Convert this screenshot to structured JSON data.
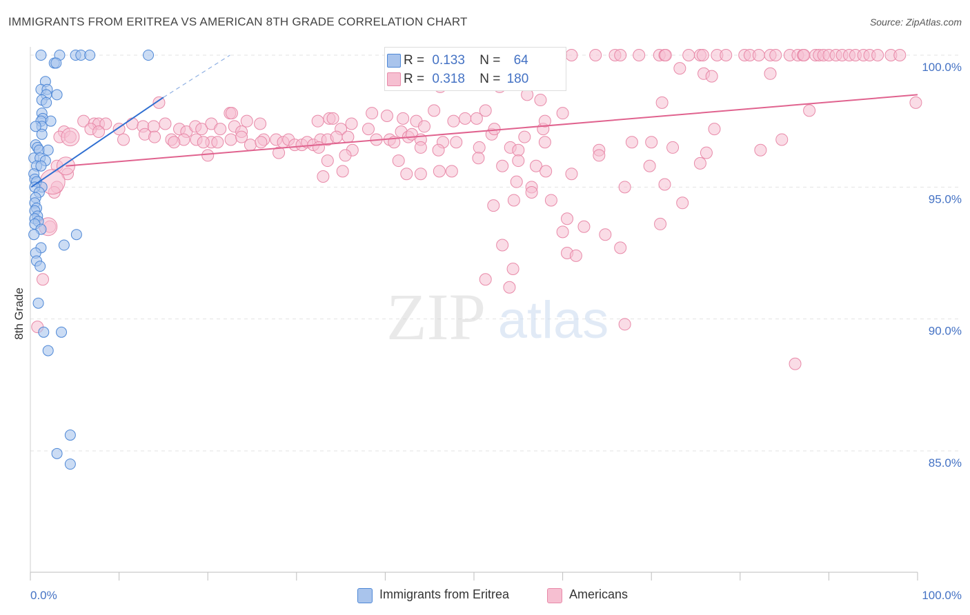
{
  "title": "IMMIGRANTS FROM ERITREA VS AMERICAN 8TH GRADE CORRELATION CHART",
  "source": "Source: ZipAtlas.com",
  "watermark": {
    "zip": "ZIP",
    "atlas": "atlas"
  },
  "legend": {
    "r_label": "R =",
    "n_label": "N =",
    "series": [
      {
        "name": "Immigrants from Eritrea",
        "r": "0.133",
        "n": "64"
      },
      {
        "name": "Americans",
        "r": "0.318",
        "n": "180"
      }
    ]
  },
  "colors": {
    "blue_fill": "#a9c4ec",
    "blue_stroke": "#4d87d6",
    "blue_line": "#2f6fd1",
    "pink_fill": "#f6bfd1",
    "pink_stroke": "#e889a8",
    "pink_line": "#e0628e",
    "tick_text": "#4472c4",
    "grid": "#e3e3e3"
  },
  "chart_data": {
    "type": "scatter",
    "title": "IMMIGRANTS FROM ERITREA VS AMERICAN 8TH GRADE CORRELATION CHART",
    "xlabel": "",
    "ylabel": "8th Grade",
    "xlim": [
      0,
      100
    ],
    "ylim": [
      80.5,
      100.5
    ],
    "x_ticks": [
      "0.0%",
      "100.0%"
    ],
    "y_ticks": [
      {
        "value": 100,
        "label": "100.0%"
      },
      {
        "value": 95,
        "label": "95.0%"
      },
      {
        "value": 90,
        "label": "90.0%"
      },
      {
        "value": 85,
        "label": "85.0%"
      }
    ],
    "grid": "horizontal dashed",
    "legend_position": "top-center",
    "series": [
      {
        "name": "Immigrants from Eritrea",
        "color": "blue",
        "r": 0.133,
        "n": 64,
        "trend": {
          "x0": 0.1,
          "y0": 95.0,
          "x1": 15.0,
          "y1": 98.4,
          "dashed_to_x": 22.5,
          "dashed_to_y": 100.0
        },
        "points": [
          [
            1.2,
            100
          ],
          [
            3.3,
            100
          ],
          [
            5.1,
            100
          ],
          [
            5.7,
            100
          ],
          [
            6.7,
            100
          ],
          [
            13.3,
            100
          ],
          [
            2.7,
            99.7
          ],
          [
            2.9,
            99.7
          ],
          [
            1.7,
            99.0
          ],
          [
            1.2,
            98.7
          ],
          [
            1.9,
            98.7
          ],
          [
            1.8,
            98.5
          ],
          [
            3.0,
            98.5
          ],
          [
            1.3,
            98.3
          ],
          [
            1.8,
            98.2
          ],
          [
            1.3,
            97.8
          ],
          [
            1.4,
            97.6
          ],
          [
            1.2,
            97.5
          ],
          [
            2.3,
            97.5
          ],
          [
            1.3,
            97.3
          ],
          [
            0.6,
            97.3
          ],
          [
            1.3,
            97.0
          ],
          [
            0.6,
            96.6
          ],
          [
            0.8,
            96.5
          ],
          [
            1.0,
            96.4
          ],
          [
            2.0,
            96.4
          ],
          [
            0.4,
            96.1
          ],
          [
            1.1,
            96.1
          ],
          [
            1.7,
            96.0
          ],
          [
            0.7,
            95.8
          ],
          [
            1.2,
            95.8
          ],
          [
            0.4,
            95.5
          ],
          [
            0.5,
            95.3
          ],
          [
            0.7,
            95.2
          ],
          [
            1.3,
            95.0
          ],
          [
            0.5,
            95.0
          ],
          [
            1.0,
            94.8
          ],
          [
            0.6,
            94.6
          ],
          [
            0.5,
            94.4
          ],
          [
            0.7,
            94.2
          ],
          [
            0.5,
            94.1
          ],
          [
            0.8,
            93.9
          ],
          [
            0.5,
            93.8
          ],
          [
            0.9,
            93.7
          ],
          [
            0.5,
            93.6
          ],
          [
            1.2,
            93.4
          ],
          [
            0.4,
            93.2
          ],
          [
            5.2,
            93.2
          ],
          [
            1.2,
            92.7
          ],
          [
            3.8,
            92.8
          ],
          [
            0.6,
            92.5
          ],
          [
            0.7,
            92.2
          ],
          [
            1.1,
            92.0
          ],
          [
            0.9,
            90.6
          ],
          [
            1.5,
            89.5
          ],
          [
            3.5,
            89.5
          ],
          [
            2.0,
            88.8
          ],
          [
            4.5,
            85.6
          ],
          [
            3.0,
            84.9
          ],
          [
            4.5,
            84.5
          ]
        ]
      },
      {
        "name": "Americans",
        "color": "pink",
        "r": 0.318,
        "n": 180,
        "trend": {
          "x0": 4.0,
          "y0": 95.8,
          "x1": 100.0,
          "y1": 98.5
        },
        "points": [
          [
            59.0,
            100
          ],
          [
            63.7,
            100
          ],
          [
            65.9,
            100
          ],
          [
            66.5,
            100
          ],
          [
            68.6,
            100
          ],
          [
            70.9,
            100
          ],
          [
            71.5,
            100
          ],
          [
            71.6,
            100
          ],
          [
            74.2,
            100
          ],
          [
            75.5,
            100
          ],
          [
            75.8,
            100
          ],
          [
            77.4,
            100
          ],
          [
            78.4,
            100
          ],
          [
            80.5,
            100
          ],
          [
            81.1,
            100
          ],
          [
            82.1,
            100
          ],
          [
            83.4,
            100
          ],
          [
            84.0,
            100
          ],
          [
            85.6,
            100
          ],
          [
            86.5,
            100
          ],
          [
            87.1,
            100
          ],
          [
            87.2,
            100
          ],
          [
            88.5,
            100
          ],
          [
            88.9,
            100
          ],
          [
            89.4,
            100
          ],
          [
            90.0,
            100
          ],
          [
            90.8,
            100
          ],
          [
            91.5,
            100
          ],
          [
            92.3,
            100
          ],
          [
            93.0,
            100
          ],
          [
            93.9,
            100
          ],
          [
            94.6,
            100
          ],
          [
            95.5,
            100
          ],
          [
            97.0,
            100
          ],
          [
            98.0,
            100
          ],
          [
            49.0,
            100
          ],
          [
            51.2,
            99.6
          ],
          [
            59.8,
            100
          ],
          [
            61.0,
            100
          ],
          [
            73.2,
            99.5
          ],
          [
            75.9,
            99.3
          ],
          [
            76.8,
            99.2
          ],
          [
            83.4,
            99.3
          ],
          [
            46.2,
            98.8
          ],
          [
            52.9,
            98.8
          ],
          [
            54.0,
            98.9
          ],
          [
            56.0,
            98.5
          ],
          [
            57.5,
            98.3
          ],
          [
            14.5,
            98.2
          ],
          [
            71.2,
            98.2
          ],
          [
            99.8,
            98.2
          ],
          [
            22.5,
            97.8
          ],
          [
            22.7,
            97.8
          ],
          [
            33.7,
            97.6
          ],
          [
            34.1,
            97.6
          ],
          [
            38.5,
            97.8
          ],
          [
            40.2,
            97.7
          ],
          [
            42.0,
            97.6
          ],
          [
            45.5,
            97.9
          ],
          [
            49.0,
            97.6
          ],
          [
            50.3,
            97.6
          ],
          [
            51.3,
            97.9
          ],
          [
            60.0,
            97.8
          ],
          [
            87.8,
            97.9
          ],
          [
            6.0,
            97.5
          ],
          [
            7.2,
            97.4
          ],
          [
            7.7,
            97.4
          ],
          [
            8.5,
            97.4
          ],
          [
            10.0,
            97.2
          ],
          [
            11.5,
            97.4
          ],
          [
            12.7,
            97.3
          ],
          [
            13.9,
            97.3
          ],
          [
            15.2,
            97.4
          ],
          [
            16.8,
            97.2
          ],
          [
            17.6,
            97.1
          ],
          [
            18.6,
            97.3
          ],
          [
            19.3,
            97.2
          ],
          [
            20.4,
            97.4
          ],
          [
            21.4,
            97.2
          ],
          [
            23.0,
            97.3
          ],
          [
            23.8,
            97.1
          ],
          [
            24.4,
            97.5
          ],
          [
            25.9,
            97.4
          ],
          [
            32.4,
            97.5
          ],
          [
            35.0,
            97.2
          ],
          [
            36.2,
            97.4
          ],
          [
            38.1,
            97.2
          ],
          [
            41.8,
            97.1
          ],
          [
            43.5,
            97.5
          ],
          [
            44.4,
            97.3
          ],
          [
            47.7,
            97.5
          ],
          [
            57.8,
            97.2
          ],
          [
            58.0,
            97.5
          ],
          [
            77.1,
            97.2
          ],
          [
            3.8,
            97.1
          ],
          [
            12.9,
            97.0
          ],
          [
            15.9,
            96.8
          ],
          [
            17.3,
            96.8
          ],
          [
            18.7,
            96.8
          ],
          [
            20.4,
            96.7
          ],
          [
            21.1,
            96.7
          ],
          [
            22.6,
            96.8
          ],
          [
            23.8,
            96.9
          ],
          [
            24.8,
            96.6
          ],
          [
            26.3,
            96.8
          ],
          [
            27.7,
            96.8
          ],
          [
            28.5,
            96.7
          ],
          [
            29.1,
            96.8
          ],
          [
            29.8,
            96.6
          ],
          [
            30.6,
            96.6
          ],
          [
            31.2,
            96.7
          ],
          [
            31.9,
            96.6
          ],
          [
            32.7,
            96.8
          ],
          [
            33.5,
            96.8
          ],
          [
            34.5,
            96.9
          ],
          [
            35.8,
            96.9
          ],
          [
            39.0,
            96.8
          ],
          [
            40.5,
            96.8
          ],
          [
            42.6,
            96.9
          ],
          [
            43.0,
            97.0
          ],
          [
            44.0,
            96.8
          ],
          [
            46.5,
            96.7
          ],
          [
            48.0,
            96.7
          ],
          [
            52.0,
            97.0
          ],
          [
            52.3,
            97.2
          ],
          [
            55.7,
            96.9
          ],
          [
            58.0,
            96.7
          ],
          [
            67.8,
            96.7
          ],
          [
            70.0,
            96.7
          ],
          [
            84.7,
            96.8
          ],
          [
            3.3,
            96.9
          ],
          [
            4.5,
            96.9
          ],
          [
            6.8,
            97.2
          ],
          [
            10.5,
            96.8
          ],
          [
            14.0,
            96.9
          ],
          [
            16.2,
            96.7
          ],
          [
            19.5,
            96.7
          ],
          [
            26.0,
            96.7
          ],
          [
            28.0,
            96.3
          ],
          [
            32.5,
            96.5
          ],
          [
            36.3,
            96.4
          ],
          [
            41.0,
            96.7
          ],
          [
            44.0,
            96.5
          ],
          [
            46.0,
            96.4
          ],
          [
            50.6,
            96.5
          ],
          [
            54.1,
            96.5
          ],
          [
            55.0,
            96.4
          ],
          [
            64.1,
            96.4
          ],
          [
            72.4,
            96.5
          ],
          [
            76.2,
            96.3
          ],
          [
            82.3,
            96.4
          ],
          [
            20.0,
            96.2
          ],
          [
            35.5,
            96.2
          ],
          [
            33.5,
            96.0
          ],
          [
            41.5,
            96.0
          ],
          [
            50.5,
            96.1
          ],
          [
            55.0,
            96.0
          ],
          [
            64.1,
            96.2
          ],
          [
            75.5,
            95.9
          ],
          [
            69.8,
            95.8
          ],
          [
            46.1,
            95.6
          ],
          [
            53.2,
            95.8
          ],
          [
            57.0,
            95.8
          ],
          [
            35.2,
            95.6
          ],
          [
            42.4,
            95.5
          ],
          [
            33.0,
            95.4
          ],
          [
            44.0,
            95.5
          ],
          [
            47.5,
            95.6
          ],
          [
            58.1,
            95.6
          ],
          [
            61.0,
            95.5
          ],
          [
            67.0,
            95.0
          ],
          [
            71.5,
            95.1
          ],
          [
            54.8,
            95.2
          ],
          [
            56.5,
            95.0
          ],
          [
            3.0,
            95.8
          ],
          [
            4.2,
            95.5
          ],
          [
            3.0,
            95.0
          ],
          [
            2.7,
            94.8
          ],
          [
            56.5,
            94.8
          ],
          [
            58.7,
            94.5
          ],
          [
            54.5,
            94.5
          ],
          [
            73.5,
            94.4
          ],
          [
            52.2,
            94.3
          ],
          [
            60.5,
            93.8
          ],
          [
            62.4,
            93.5
          ],
          [
            71.0,
            93.6
          ],
          [
            60.0,
            93.3
          ],
          [
            64.8,
            93.2
          ],
          [
            53.2,
            92.8
          ],
          [
            66.5,
            92.7
          ],
          [
            60.5,
            92.5
          ],
          [
            61.5,
            92.4
          ],
          [
            2.2,
            93.5
          ],
          [
            54.4,
            91.9
          ],
          [
            51.3,
            91.5
          ],
          [
            54.0,
            91.2
          ],
          [
            1.4,
            91.5
          ],
          [
            0.8,
            89.7
          ],
          [
            67.0,
            89.8
          ],
          [
            86.2,
            88.3
          ],
          [
            7.7,
            97.1
          ]
        ],
        "large_points": [
          [
            2.5,
            95.2
          ],
          [
            4.0,
            95.8
          ],
          [
            4.5,
            96.9
          ],
          [
            2.0,
            93.5
          ]
        ]
      }
    ]
  }
}
